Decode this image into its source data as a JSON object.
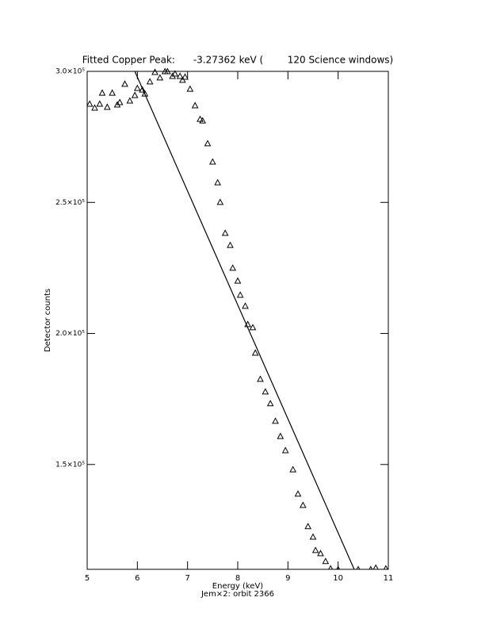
{
  "chart_data": {
    "type": "scatter",
    "title": "Fitted Copper Peak:      -3.27362 keV (        120 Science windows)",
    "x_label": "Energy (keV)",
    "subtitle": "Jem×2: orbit 2366",
    "y_label": "Detector counts",
    "xlim": [
      5,
      11
    ],
    "xticks": [
      5,
      6,
      7,
      8,
      9,
      10,
      11
    ],
    "ylim": [
      110000,
      300000
    ],
    "yticks": [
      {
        "value": 150000,
        "label": "1.5×10⁵"
      },
      {
        "value": 200000,
        "label": "2.0×10⁵"
      },
      {
        "value": 250000,
        "label": "2.5×10⁵"
      },
      {
        "value": 300000,
        "label": "3.0×10⁵"
      }
    ],
    "color": "#000000",
    "series": [
      {
        "kind": "points",
        "x": [
          5.05,
          5.15,
          5.25,
          5.3,
          5.4,
          5.5,
          5.6,
          5.65,
          5.75,
          5.85,
          5.95,
          6.0,
          6.1,
          6.15,
          6.25,
          6.35,
          6.45,
          6.55,
          6.6,
          6.7,
          6.75,
          6.85,
          6.9,
          6.95,
          7.05,
          7.15,
          7.25,
          7.3,
          7.4,
          7.5,
          7.6,
          7.65,
          7.75,
          7.85,
          7.9,
          8.0,
          8.05,
          8.15,
          8.2,
          8.3,
          8.35,
          8.45,
          8.55,
          8.65,
          8.75,
          8.85,
          8.95,
          9.1,
          9.2,
          9.3,
          9.4,
          9.5,
          9.55,
          9.65,
          9.75,
          9.85,
          10.0,
          10.4,
          10.65,
          10.75,
          10.95
        ],
        "values": [
          287600,
          286100,
          287600,
          291800,
          286400,
          291800,
          287300,
          288200,
          295200,
          288800,
          290900,
          293600,
          293000,
          291500,
          296100,
          299700,
          297600,
          300000,
          300000,
          298200,
          299100,
          298200,
          296700,
          297900,
          293300,
          287000,
          281800,
          281200,
          272500,
          265500,
          257600,
          250100,
          238300,
          233700,
          225000,
          220100,
          214700,
          210500,
          203500,
          202300,
          192600,
          182600,
          177800,
          173300,
          166600,
          160800,
          155400,
          148100,
          138800,
          134500,
          126400,
          122400,
          117300,
          116100,
          113100,
          110300,
          110000,
          110000,
          110000,
          110600,
          110300
        ]
      },
      {
        "kind": "line",
        "x": [
          5.95,
          10.32
        ],
        "values": [
          300000,
          110000
        ]
      }
    ]
  }
}
